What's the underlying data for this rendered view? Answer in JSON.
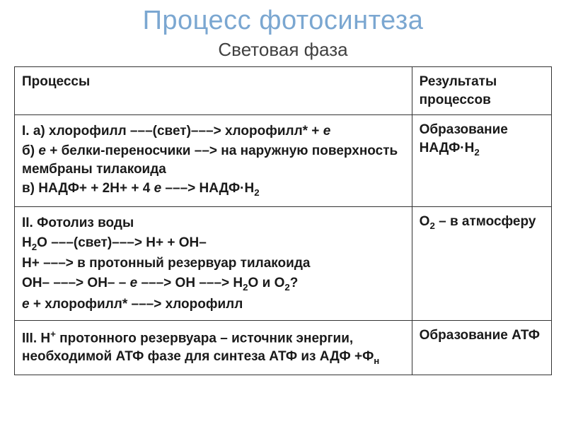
{
  "title": "Процесс фотосинтеза",
  "subtitle": "Световая фаза",
  "table": {
    "header": {
      "col1": "Процессы",
      "col2": "Результаты процессов"
    },
    "rows": [
      {
        "col1": [
          "I. а) хлорофилл –––(свет)–––> хлорофилл* + е",
          "б) е + белки-переносчики ––> на наружную поверхность мембраны тилакоида",
          "в) НАДФ+ + 2Н+ + 4 е –––> НАДФ·Н₂"
        ],
        "col2": "Образование НАДФ·Н₂"
      },
      {
        "col1": [
          "II. Фотолиз воды",
          "Н₂О –––(свет)–––> Н+ + ОН–",
          "Н+ –––> в протонный резервуар тилакоида",
          "ОН– –––> ОН– – е –––> ОН –––> Н₂О и О₂?",
          "е + хлорофилл* –––> хлорофилл"
        ],
        "col2": "О₂ – в атмосферу"
      },
      {
        "col1": [
          "III. Н⁺ протонного резервуара – источник энергии, необходимой АТФ фазе для синтеза АТФ из АДФ +Фₙ"
        ],
        "col2": "Образование АТФ"
      }
    ]
  },
  "styling": {
    "title_color": "#7ba7d1",
    "title_fontsize": 38,
    "subtitle_fontsize": 26,
    "cell_fontsize": 19,
    "border_color": "#333333",
    "background": "#ffffff",
    "col1_width_pct": 74,
    "col2_width_pct": 26,
    "font_weight": "bold"
  }
}
